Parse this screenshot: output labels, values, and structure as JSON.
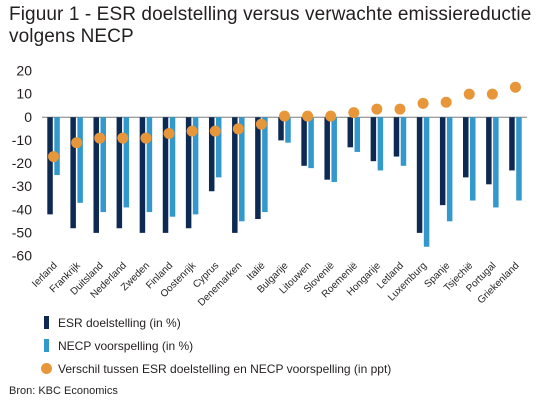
{
  "title": "Figuur 1 - ESR doelstelling versus verwachte emissiereductie volgens NECP",
  "source": "Bron: KBC Economics",
  "chart_data": {
    "type": "bar",
    "title": "Figuur 1 - ESR doelstelling versus verwachte emissiereductie volgens NECP",
    "categories": [
      "Ierland",
      "Frankrijk",
      "Duitsland",
      "Nederland",
      "Zweden",
      "Finland",
      "Oostenrijk",
      "Cyprus",
      "Denemarken",
      "Italië",
      "Bulgarije",
      "Litouwen",
      "Slovenië",
      "Roemenië",
      "Hongarije",
      "Letland",
      "Luxemburg",
      "Spanje",
      "Tsjechië",
      "Portugal",
      "Griekenland"
    ],
    "series": [
      {
        "name": "ESR doelstelling (in %)",
        "kind": "bar",
        "color": "#0f2a52",
        "values": [
          -42,
          -48,
          -50,
          -48,
          -50,
          -50,
          -48,
          -32,
          -50,
          -44,
          -10,
          -21,
          -27,
          -13,
          -19,
          -17,
          -50,
          -38,
          -26,
          -29,
          -23
        ]
      },
      {
        "name": "NECP voorspelling (in %)",
        "kind": "bar",
        "color": "#3399cc",
        "values": [
          -25,
          -37,
          -41,
          -39,
          -41,
          -43,
          -42,
          -26,
          -45,
          -41,
          -11,
          -22,
          -28,
          -15,
          -23,
          -21,
          -56,
          -45,
          -36,
          -39,
          -36
        ]
      },
      {
        "name": "Verschil tussen ESR doelstelling en NECP voorspelling (in ppt)",
        "kind": "dot",
        "color": "#e8963a",
        "values": [
          -17,
          -11,
          -9,
          -9,
          -9,
          -7,
          -6,
          -6,
          -5,
          -3,
          0.5,
          0.5,
          0.5,
          2,
          3.5,
          3.5,
          6,
          6.5,
          10,
          10,
          13
        ]
      }
    ],
    "ylim": [
      -60,
      20
    ],
    "yticks": [
      20,
      10,
      0,
      -10,
      -20,
      -30,
      -40,
      -50,
      -60
    ],
    "grid": false,
    "legend_position": "bottom-left"
  }
}
